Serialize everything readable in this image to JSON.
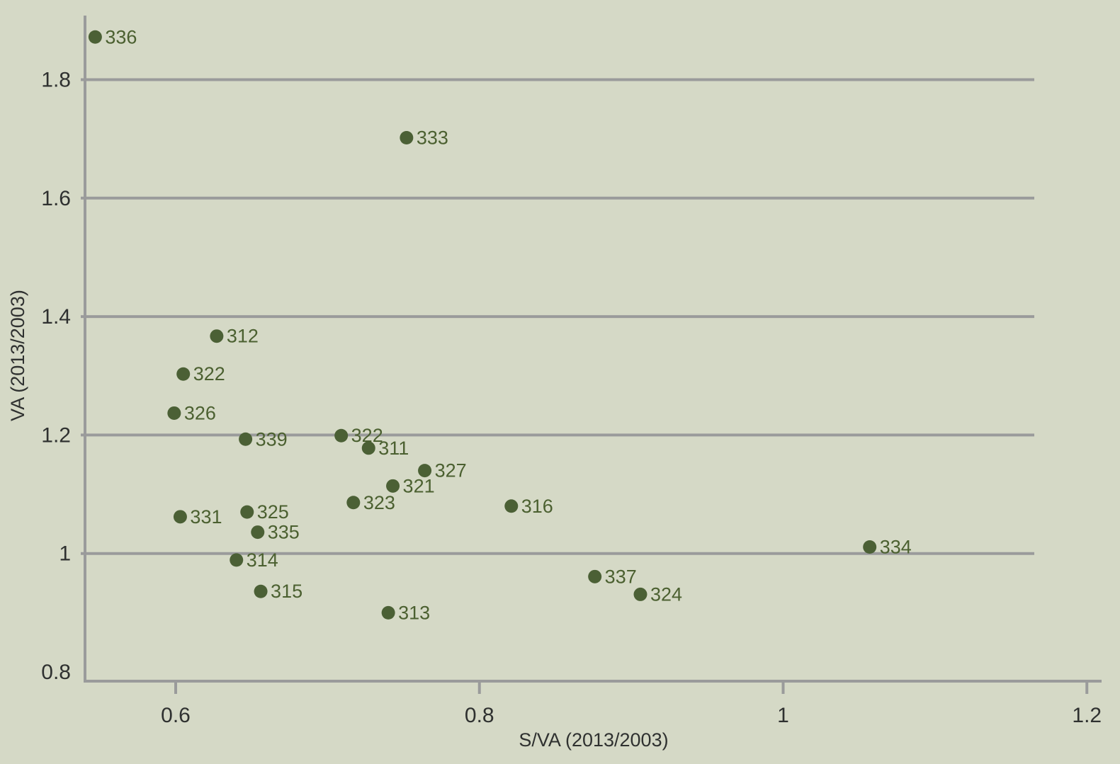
{
  "chart_data": {
    "type": "scatter",
    "title": "",
    "xlabel": "S/VA (2013/2003)",
    "ylabel": "VA (2013/2003)",
    "xlim": [
      0.54,
      1.21
    ],
    "ylim": [
      0.78,
      1.89
    ],
    "x_ticks": [
      {
        "value": 0.6,
        "label": "0.6"
      },
      {
        "value": 0.8,
        "label": "0.8"
      },
      {
        "value": 1.0,
        "label": "1"
      },
      {
        "value": 1.2,
        "label": "1.2"
      }
    ],
    "y_ticks": [
      {
        "value": 0.8,
        "label": "0.8"
      },
      {
        "value": 1.0,
        "label": "1"
      },
      {
        "value": 1.2,
        "label": "1.2"
      },
      {
        "value": 1.4,
        "label": "1.4"
      },
      {
        "value": 1.6,
        "label": "1.6"
      },
      {
        "value": 1.8,
        "label": "1.8"
      }
    ],
    "grid": {
      "horizontal": true,
      "vertical": false
    },
    "marker_color": "#4b6035",
    "label_color": "#4b6030",
    "grid_color": "#9a9b9b",
    "points": [
      {
        "label": "336",
        "x": 0.547,
        "y": 1.872
      },
      {
        "label": "333",
        "x": 0.752,
        "y": 1.702
      },
      {
        "label": "312",
        "x": 0.627,
        "y": 1.367
      },
      {
        "label": "322",
        "x": 0.605,
        "y": 1.303
      },
      {
        "label": "326",
        "x": 0.599,
        "y": 1.237
      },
      {
        "label": "339",
        "x": 0.646,
        "y": 1.193
      },
      {
        "label": "322",
        "x": 0.709,
        "y": 1.199
      },
      {
        "label": "311",
        "x": 0.727,
        "y": 1.178
      },
      {
        "label": "327",
        "x": 0.764,
        "y": 1.14
      },
      {
        "label": "321",
        "x": 0.743,
        "y": 1.114
      },
      {
        "label": "323",
        "x": 0.717,
        "y": 1.086
      },
      {
        "label": "316",
        "x": 0.821,
        "y": 1.08
      },
      {
        "label": "331",
        "x": 0.603,
        "y": 1.062
      },
      {
        "label": "325",
        "x": 0.647,
        "y": 1.07
      },
      {
        "label": "335",
        "x": 0.654,
        "y": 1.036
      },
      {
        "label": "314",
        "x": 0.64,
        "y": 0.989
      },
      {
        "label": "315",
        "x": 0.656,
        "y": 0.936
      },
      {
        "label": "313",
        "x": 0.74,
        "y": 0.9
      },
      {
        "label": "337",
        "x": 0.876,
        "y": 0.961
      },
      {
        "label": "324",
        "x": 0.906,
        "y": 0.931
      },
      {
        "label": "334",
        "x": 1.057,
        "y": 1.011
      }
    ]
  }
}
